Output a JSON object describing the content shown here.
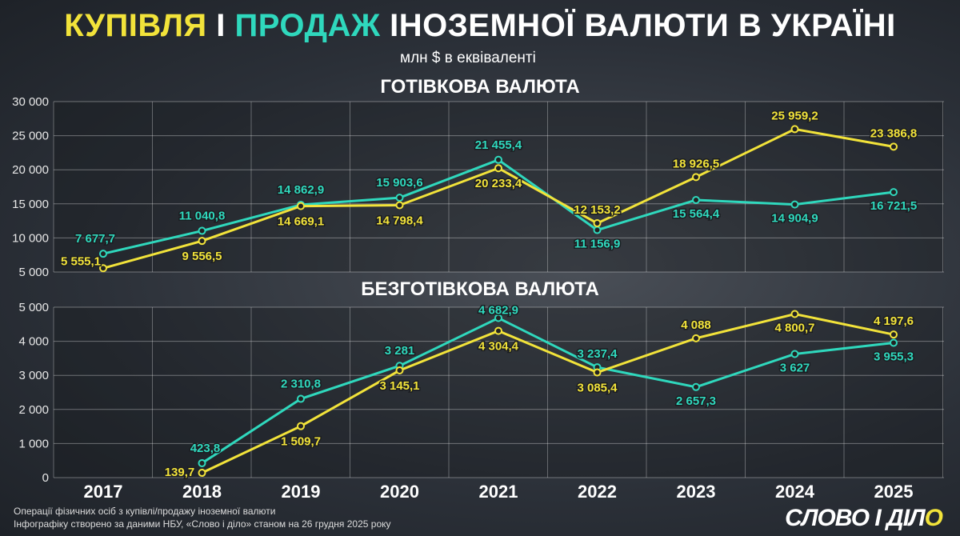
{
  "title": {
    "part1": "КУПІВЛЯ",
    "part2": " І ",
    "part3": "ПРОДАЖ",
    "part4": " ІНОЗЕМНОЇ ВАЛЮТИ В УКРАЇНІ"
  },
  "subtitle": "млн $ в еквіваленті",
  "footer": {
    "line1": "Операції фізичних осіб з купівлі/продажу іноземної валюти",
    "line2": "Інфографіку створено за даними НБУ, «Слово і діло» станом на 26 грудня 2025 року"
  },
  "logo": "СЛОВО І ДІЛО",
  "colors": {
    "buy": "#f2e33a",
    "sell": "#2fd8bd"
  },
  "chart_data": [
    {
      "type": "line",
      "title": "ГОТІВКОВА ВАЛЮТА",
      "categories": [
        "2017",
        "2018",
        "2019",
        "2020",
        "2021",
        "2022",
        "2023",
        "2024",
        "2025"
      ],
      "ylim": [
        5000,
        30000
      ],
      "yticks": [
        "5 000",
        "10 000",
        "15 000",
        "20 000",
        "25 000",
        "30 000"
      ],
      "grid": true,
      "series": [
        {
          "key": "sell",
          "values": [
            7677.7,
            11040.8,
            14862.9,
            15903.6,
            21455.4,
            11156.9,
            15564.4,
            14904.9,
            16721.5
          ],
          "labels": [
            "7 677,7",
            "11 040,8",
            "14 862,9",
            "15 903,6",
            "21 455,4",
            "11 156,9",
            "15 564,4",
            "14 904,9",
            "16 721,5"
          ]
        },
        {
          "key": "buy",
          "values": [
            5555.1,
            9556.5,
            14669.1,
            14798.4,
            20233.4,
            12153.2,
            18926.5,
            25959.2,
            23386.8
          ],
          "labels": [
            "5 555,1",
            "9 556,5",
            "14 669,1",
            "14 798,4",
            "20 233,4",
            "12 153,2",
            "18 926,5",
            "25 959,2",
            "23 386,8"
          ]
        }
      ]
    },
    {
      "type": "line",
      "title": "БЕЗГОТІВКОВА ВАЛЮТА",
      "categories": [
        "2017",
        "2018",
        "2019",
        "2020",
        "2021",
        "2022",
        "2023",
        "2024",
        "2025"
      ],
      "ylim": [
        0,
        5000
      ],
      "yticks": [
        "0",
        "1 000",
        "2 000",
        "3 000",
        "4 000",
        "5 000"
      ],
      "grid": true,
      "series": [
        {
          "key": "sell",
          "values": [
            null,
            423.8,
            2310.8,
            3281,
            4682.9,
            3237.4,
            2657.3,
            3627,
            3955.3
          ],
          "labels": [
            "",
            "423,8",
            "2 310,8",
            "3 281",
            "4 682,9",
            "3 237,4",
            "2 657,3",
            "3 627",
            "3 955,3"
          ]
        },
        {
          "key": "buy",
          "values": [
            null,
            139.7,
            1509.7,
            3145.1,
            4304.4,
            3085.4,
            4088,
            4800.7,
            4197.6
          ],
          "labels": [
            "",
            "139,7",
            "1 509,7",
            "3 145,1",
            "4 304,4",
            "3 085,4",
            "4 088",
            "4 800,7",
            "4 197,6"
          ]
        }
      ]
    }
  ]
}
